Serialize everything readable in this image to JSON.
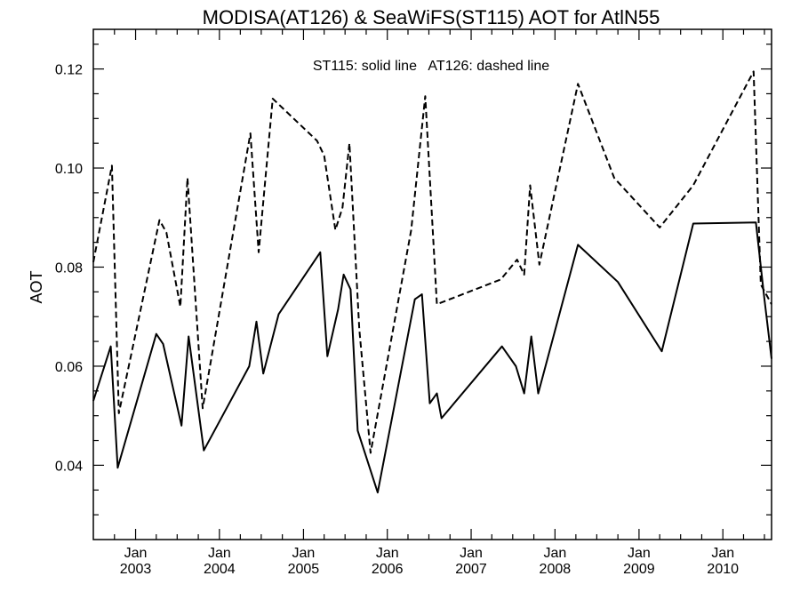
{
  "chart_data": {
    "type": "line",
    "title": "MODISA(AT126) & SeaWiFS(ST115)  AOT for AtlN55",
    "annotation": "ST115: solid line   AT126: dashed line",
    "xlabel": "",
    "ylabel": "AOT",
    "xlim": [
      "2002-07-01",
      "2010-08-01"
    ],
    "ylim": [
      0.025,
      0.128
    ],
    "x_ticks": [
      {
        "date": "2003-01-01",
        "month": "Jan",
        "year": "2003"
      },
      {
        "date": "2004-01-01",
        "month": "Jan",
        "year": "2004"
      },
      {
        "date": "2005-01-01",
        "month": "Jan",
        "year": "2005"
      },
      {
        "date": "2006-01-01",
        "month": "Jan",
        "year": "2006"
      },
      {
        "date": "2007-01-01",
        "month": "Jan",
        "year": "2007"
      },
      {
        "date": "2008-01-01",
        "month": "Jan",
        "year": "2008"
      },
      {
        "date": "2009-01-01",
        "month": "Jan",
        "year": "2009"
      },
      {
        "date": "2010-01-01",
        "month": "Jan",
        "year": "2010"
      }
    ],
    "y_ticks": [
      "0.04",
      "0.06",
      "0.08",
      "0.10",
      "0.12"
    ],
    "series": [
      {
        "line_style": "solid",
        "points": [
          [
            "2002-07-01",
            0.053
          ],
          [
            "2002-09-15",
            0.064
          ],
          [
            "2002-10-15",
            0.0395
          ],
          [
            "2003-04-01",
            0.0665
          ],
          [
            "2003-05-01",
            0.0645
          ],
          [
            "2003-07-20",
            0.048
          ],
          [
            "2003-08-20",
            0.066
          ],
          [
            "2003-10-25",
            0.043
          ],
          [
            "2004-05-10",
            0.06
          ],
          [
            "2004-06-10",
            0.069
          ],
          [
            "2004-07-10",
            0.0585
          ],
          [
            "2004-09-15",
            0.0705
          ],
          [
            "2005-03-15",
            0.083
          ],
          [
            "2005-04-15",
            0.062
          ],
          [
            "2005-06-01",
            0.0715
          ],
          [
            "2005-06-25",
            0.0785
          ],
          [
            "2005-07-25",
            0.0755
          ],
          [
            "2005-08-25",
            0.047
          ],
          [
            "2005-11-20",
            0.0345
          ],
          [
            "2006-05-01",
            0.0735
          ],
          [
            "2006-06-01",
            0.0745
          ],
          [
            "2006-07-05",
            0.0525
          ],
          [
            "2006-08-05",
            0.0545
          ],
          [
            "2006-08-25",
            0.0495
          ],
          [
            "2007-05-15",
            0.064
          ],
          [
            "2007-07-15",
            0.06
          ],
          [
            "2007-08-20",
            0.0545
          ],
          [
            "2007-09-20",
            0.066
          ],
          [
            "2007-10-20",
            0.0545
          ],
          [
            "2008-04-10",
            0.0845
          ],
          [
            "2008-10-01",
            0.077
          ],
          [
            "2009-04-10",
            0.063
          ],
          [
            "2009-08-25",
            0.0888
          ],
          [
            "2010-05-25",
            0.089
          ],
          [
            "2010-07-01",
            0.0735
          ],
          [
            "2010-08-01",
            0.0615
          ]
        ]
      },
      {
        "line_style": "dashed",
        "points": [
          [
            "2002-07-01",
            0.081
          ],
          [
            "2002-09-20",
            0.1005
          ],
          [
            "2002-10-20",
            0.0505
          ],
          [
            "2003-04-15",
            0.0895
          ],
          [
            "2003-05-15",
            0.087
          ],
          [
            "2003-07-15",
            0.072
          ],
          [
            "2003-08-15",
            0.098
          ],
          [
            "2003-10-20",
            0.0515
          ],
          [
            "2004-05-15",
            0.107
          ],
          [
            "2004-06-20",
            0.083
          ],
          [
            "2004-08-20",
            0.114
          ],
          [
            "2005-03-01",
            0.1055
          ],
          [
            "2005-04-01",
            0.1025
          ],
          [
            "2005-05-20",
            0.0875
          ],
          [
            "2005-06-20",
            0.092
          ],
          [
            "2005-07-20",
            0.105
          ],
          [
            "2005-09-01",
            0.0675
          ],
          [
            "2005-10-20",
            0.0425
          ],
          [
            "2006-04-15",
            0.0875
          ],
          [
            "2006-06-15",
            0.1145
          ],
          [
            "2006-08-05",
            0.0725
          ],
          [
            "2007-05-10",
            0.0775
          ],
          [
            "2007-07-20",
            0.0815
          ],
          [
            "2007-08-20",
            0.0785
          ],
          [
            "2007-09-15",
            0.0965
          ],
          [
            "2007-10-25",
            0.0805
          ],
          [
            "2008-04-10",
            0.117
          ],
          [
            "2008-09-15",
            0.098
          ],
          [
            "2009-04-01",
            0.088
          ],
          [
            "2009-08-25",
            0.0965
          ],
          [
            "2010-05-15",
            0.1195
          ],
          [
            "2010-06-15",
            0.0765
          ],
          [
            "2010-08-01",
            0.0725
          ]
        ]
      }
    ]
  }
}
